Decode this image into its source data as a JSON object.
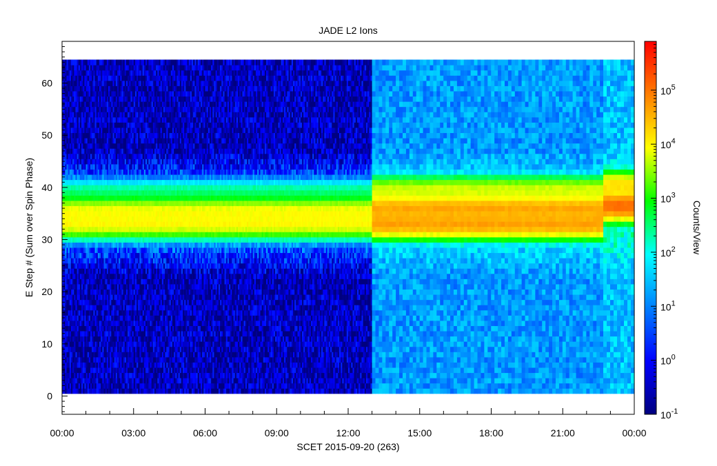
{
  "chart_data": {
    "type": "heatmap",
    "title": "JADE L2 Ions",
    "xlabel": "SCET 2015-09-20 (263)",
    "ylabel": "E Step # (Sum over Spin Phase)",
    "colorbar_label": "Counts/View",
    "x_ticks": [
      "00:00",
      "03:00",
      "06:00",
      "09:00",
      "12:00",
      "15:00",
      "18:00",
      "21:00",
      "00:00"
    ],
    "x_range_hours": [
      0,
      24
    ],
    "y_ticks": [
      0,
      10,
      20,
      30,
      40,
      50,
      60
    ],
    "y_range": [
      -3.5,
      68
    ],
    "data_extent": {
      "t_start_hours": 0,
      "t_end_hours": 24,
      "e_step_min": 1,
      "e_step_max": 64
    },
    "colorbar_ticks": [
      {
        "mant": "10",
        "exp": "-1",
        "value": 0.1
      },
      {
        "mant": "10",
        "exp": "0",
        "value": 1
      },
      {
        "mant": "10",
        "exp": "1",
        "value": 10
      },
      {
        "mant": "10",
        "exp": "2",
        "value": 100
      },
      {
        "mant": "10",
        "exp": "3",
        "value": 1000
      },
      {
        "mant": "10",
        "exp": "4",
        "value": 10000
      },
      {
        "mant": "10",
        "exp": "5",
        "value": 100000
      }
    ],
    "colorbar_range": [
      0.1,
      800000
    ],
    "color_scale": "log",
    "colormap": [
      "#00007f",
      "#0000ff",
      "#007fff",
      "#00ffff",
      "#00ff00",
      "#ffff00",
      "#ff7f00",
      "#ff0000"
    ],
    "segments": [
      {
        "t_start_hours": 0,
        "t_end_hours": 13.0,
        "background_counts": 0.3,
        "bands": [
          {
            "e_step_center": 35.5,
            "peak_counts": 8000
          },
          {
            "e_step_center": 33.0,
            "peak_counts": 9000
          },
          {
            "e_step_center": 39.0,
            "peak_counts": 300
          }
        ]
      },
      {
        "t_start_hours": 13.0,
        "t_end_hours": 22.7,
        "background_counts": 15,
        "bands": [
          {
            "e_step_center": 36.0,
            "peak_counts": 40000
          },
          {
            "e_step_center": 33.0,
            "peak_counts": 45000
          },
          {
            "e_step_center": 39.5,
            "peak_counts": 6000
          }
        ]
      },
      {
        "t_start_hours": 22.7,
        "t_end_hours": 24.0,
        "background_counts": 30,
        "bands": [
          {
            "e_step_center": 36.5,
            "peak_counts": 120000
          },
          {
            "e_step_center": 40.5,
            "peak_counts": 15000
          }
        ]
      }
    ]
  }
}
